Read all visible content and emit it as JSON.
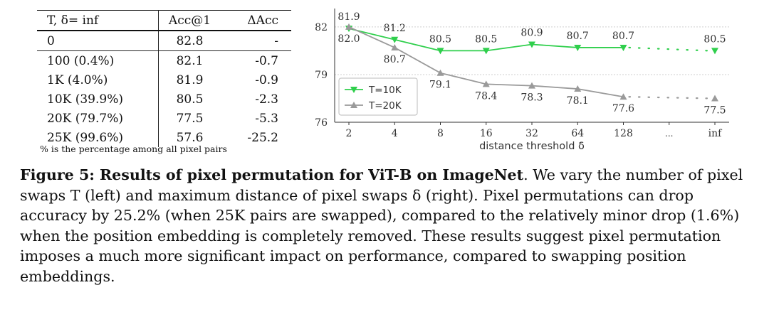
{
  "table": {
    "headers": [
      "T, δ= inf",
      "Acc@1",
      "ΔAcc"
    ],
    "rows": [
      [
        "0",
        "82.8",
        "-"
      ],
      [
        "100 (0.4%)",
        "82.1",
        "-0.7"
      ],
      [
        "1K (4.0%)",
        "81.9",
        "-0.9"
      ],
      [
        "10K (39.9%)",
        "80.5",
        "-2.3"
      ],
      [
        "20K (79.7%)",
        "77.5",
        "-5.3"
      ],
      [
        "25K (99.6%)",
        "57.6",
        "-25.2"
      ]
    ],
    "note": "% is the percentage among all pixel pairs"
  },
  "chart_data": {
    "type": "line",
    "categories": [
      "2",
      "4",
      "8",
      "16",
      "32",
      "64",
      "128",
      "...",
      "inf"
    ],
    "xlabel": "distance threshold δ",
    "ylabel": "",
    "ylim": [
      76,
      82.8
    ],
    "yticks": [
      "82",
      "79",
      "76"
    ],
    "grid": true,
    "legend_position": "middle-left",
    "series": [
      {
        "name": "T=10K",
        "color": "#2fcf4c",
        "marker": "triangle-down",
        "values": [
          81.9,
          81.2,
          80.5,
          80.5,
          80.9,
          80.7,
          80.7,
          null,
          80.5
        ],
        "labels": [
          "81.9",
          "81.2",
          "80.5",
          "80.5",
          "80.9",
          "80.7",
          "80.7",
          "",
          "80.5"
        ]
      },
      {
        "name": "T=20K",
        "color": "#9a9a9a",
        "marker": "triangle-up",
        "values": [
          82.0,
          80.7,
          79.1,
          78.4,
          78.3,
          78.1,
          77.6,
          null,
          77.5
        ],
        "labels": [
          "82.0",
          "80.7",
          "79.1",
          "78.4",
          "78.3",
          "78.1",
          "77.6",
          "",
          "77.5"
        ]
      }
    ]
  },
  "caption": {
    "label": "Figure 5: Results of pixel permutation for ViT-B on ImageNet",
    "text": ". We vary the number of pixel swaps T (left) and maximum distance of pixel swaps δ (right). Pixel permutations can drop accuracy by 25.2% (when 25K pairs are swapped), compared to the relatively minor drop (1.6%) when the position embedding is completely removed. These results suggest pixel permutation imposes a much more significant impact on performance, compared to swapping position embeddings."
  }
}
